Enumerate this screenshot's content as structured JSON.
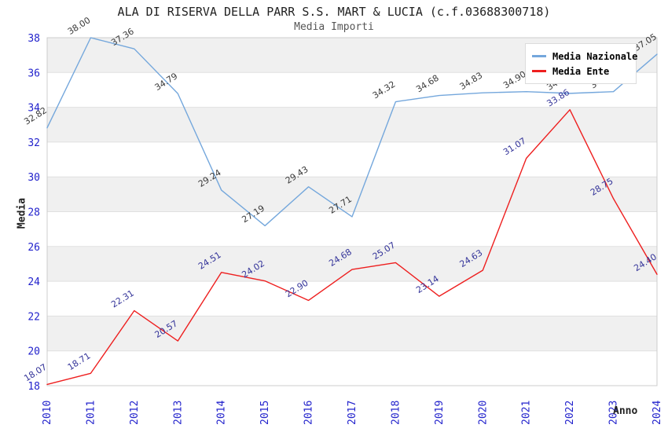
{
  "title": "ALA DI RISERVA DELLA PARR S.S. MART & LUCIA (c.f.03688300718)",
  "subtitle": "Media Importi",
  "axes": {
    "y_label": "Media",
    "x_label": "Anno",
    "y_ticks": [
      18,
      20,
      22,
      24,
      26,
      28,
      30,
      32,
      34,
      36,
      38
    ],
    "x_ticks": [
      "2010",
      "2011",
      "2012",
      "2013",
      "2014",
      "2015",
      "2016",
      "2017",
      "2018",
      "2019",
      "2020",
      "2021",
      "2022",
      "2023",
      "2024"
    ],
    "tick_color": "#2222cc"
  },
  "legend": {
    "items": [
      {
        "label": "Media Nazionale",
        "color": "#74a7dc"
      },
      {
        "label": "Media Ente",
        "color": "#ee1f1f"
      }
    ]
  },
  "colors": {
    "band_gray": "#f0f0f0",
    "band_white": "#ffffff",
    "gridline": "#e0e0e0",
    "plot_border": "#cccccc",
    "blue_label": "#3a3a3a",
    "red_label": "#333399"
  },
  "chart_data": {
    "type": "line",
    "title": "ALA DI RISERVA DELLA PARR S.S. MART & LUCIA (c.f.03688300718)",
    "subtitle": "Media Importi",
    "xlabel": "Anno",
    "ylabel": "Media",
    "ylim": [
      18,
      38
    ],
    "grid": true,
    "legend_position": "top-right",
    "x": [
      2010,
      2011,
      2012,
      2013,
      2014,
      2015,
      2016,
      2017,
      2018,
      2019,
      2020,
      2021,
      2022,
      2023,
      2024
    ],
    "series": [
      {
        "name": "Media Nazionale",
        "color": "#74a7dc",
        "label_color": "#3a3a3a",
        "values": [
          32.82,
          38.0,
          37.36,
          34.79,
          29.24,
          27.19,
          29.43,
          27.71,
          34.32,
          34.68,
          34.83,
          34.9,
          34.8,
          34.9,
          37.05
        ]
      },
      {
        "name": "Media Ente",
        "color": "#ee1f1f",
        "label_color": "#333399",
        "values": [
          18.07,
          18.71,
          22.31,
          20.57,
          24.51,
          24.02,
          22.9,
          24.68,
          25.07,
          23.14,
          24.63,
          31.07,
          33.86,
          28.75,
          24.4
        ]
      }
    ]
  }
}
